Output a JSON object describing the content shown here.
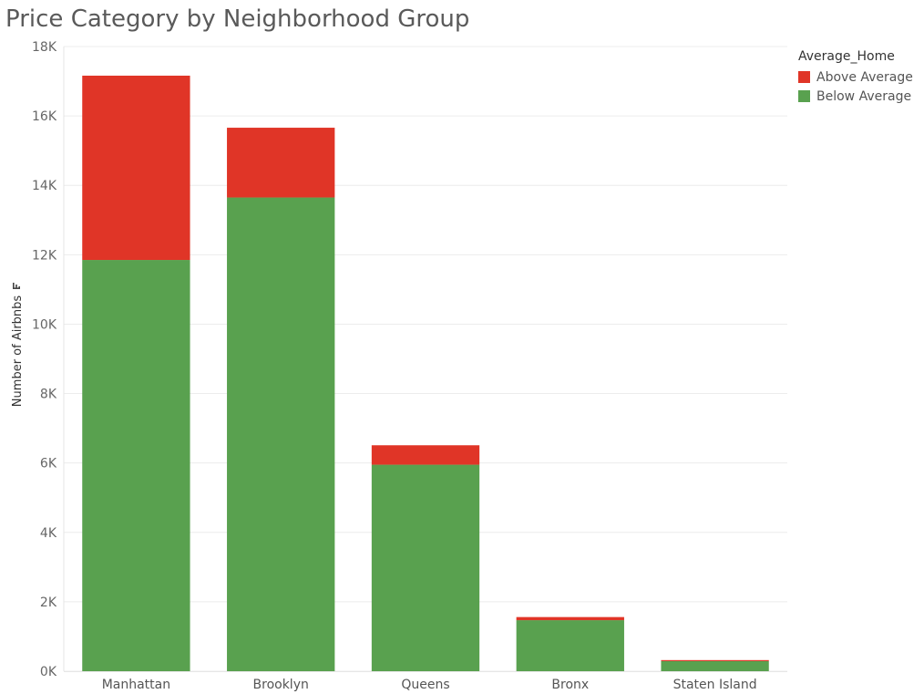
{
  "chart_data": {
    "type": "bar",
    "stacked": true,
    "title": "Price Category by Neighborhood Group",
    "xlabel": "",
    "ylabel": "Number of Airbnbs",
    "ylim": [
      0,
      18000
    ],
    "yticks": [
      0,
      2000,
      4000,
      6000,
      8000,
      10000,
      12000,
      14000,
      16000,
      18000
    ],
    "ytick_labels": [
      "0K",
      "2K",
      "4K",
      "6K",
      "8K",
      "10K",
      "12K",
      "14K",
      "16K",
      "18K"
    ],
    "grid": true,
    "legend_position": "top-right",
    "legend_title": "Average_Home",
    "categories": [
      "Manhattan",
      "Brooklyn",
      "Queens",
      "Bronx",
      "Staten Island"
    ],
    "series": [
      {
        "name": "Below Average",
        "color": "#59a14f",
        "values": [
          11850,
          13650,
          5950,
          1470,
          290
        ]
      },
      {
        "name": "Above Average",
        "color": "#e03527",
        "values": [
          5310,
          2010,
          560,
          90,
          30
        ]
      }
    ]
  }
}
